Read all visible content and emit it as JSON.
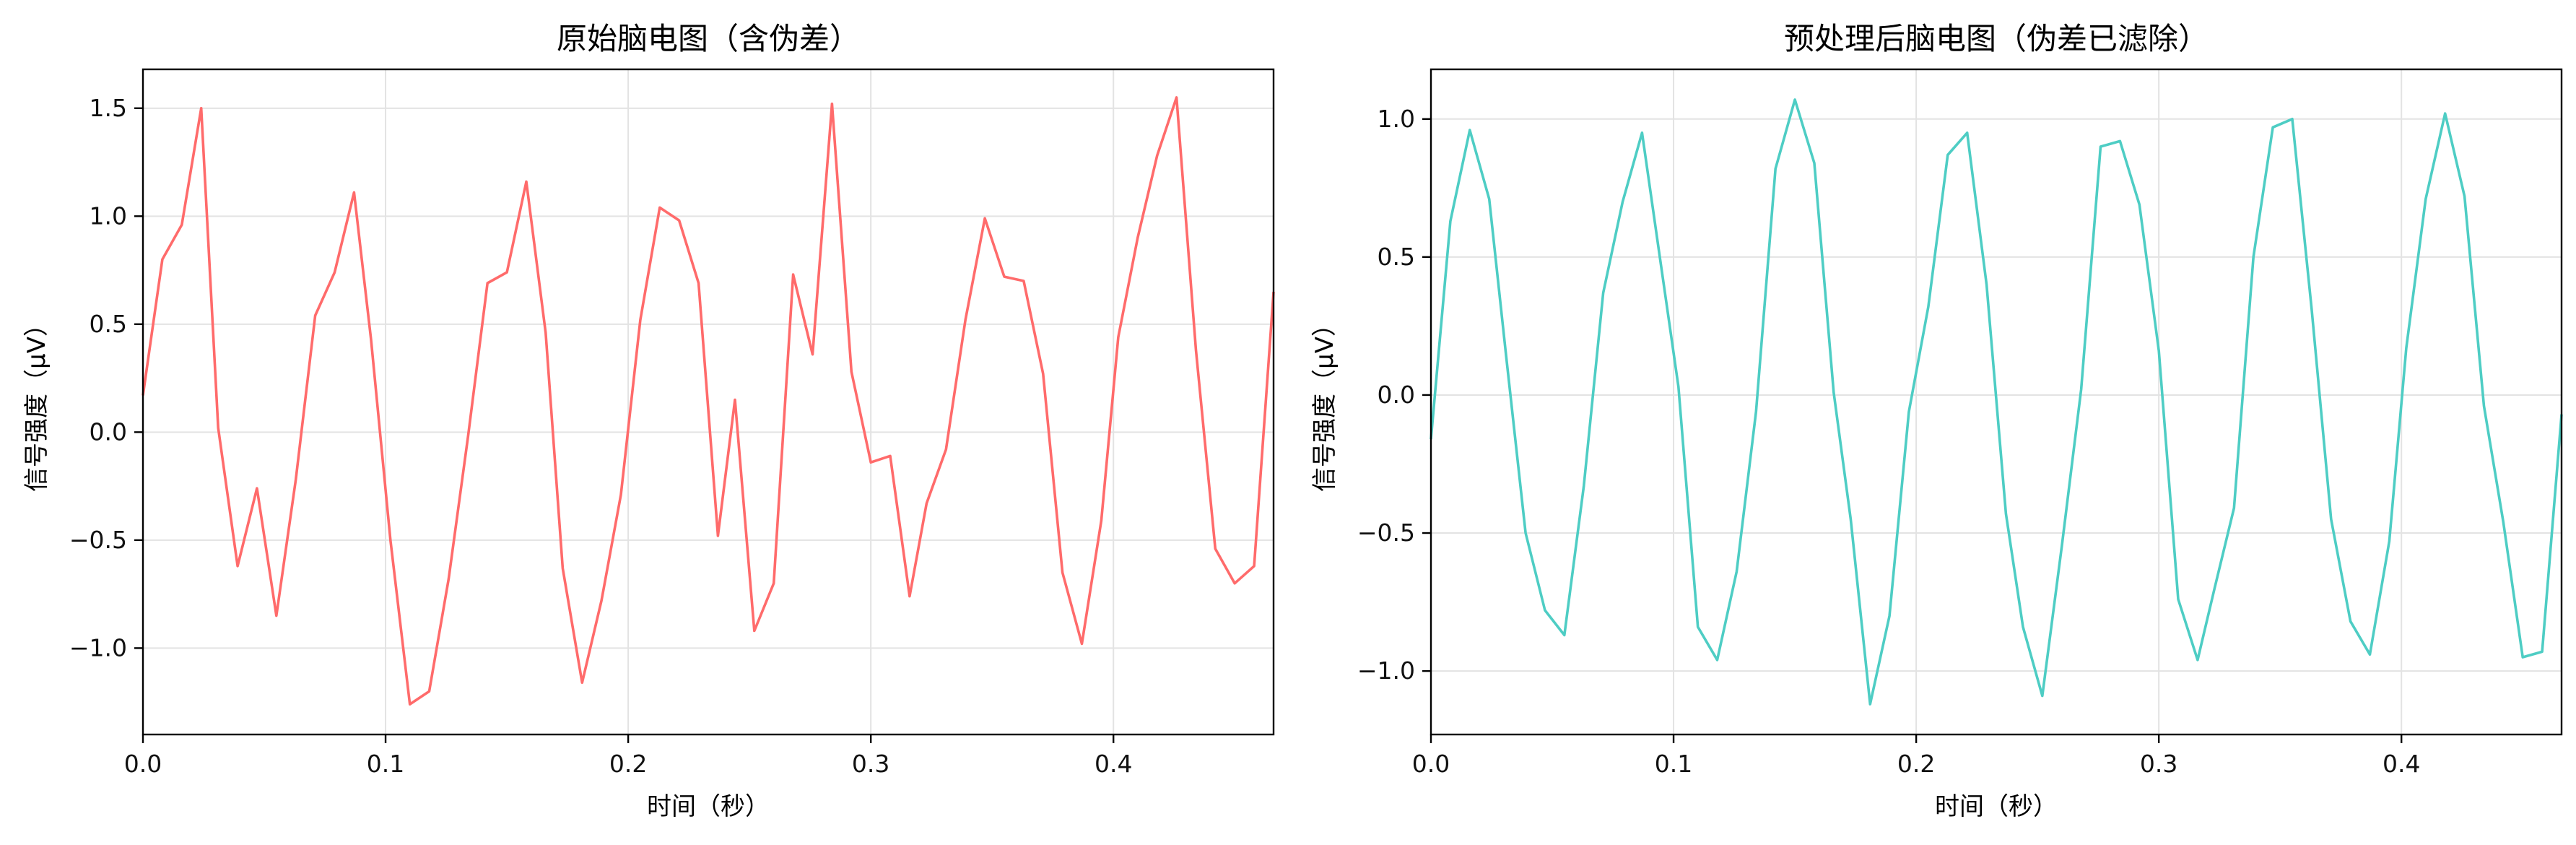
{
  "chart_data": [
    {
      "type": "line",
      "title": "原始脑电图（含伪差）",
      "xlabel": "时间（秒）",
      "ylabel": "信号强度（μV）",
      "xlim": [
        0,
        0.466
      ],
      "ylim": [
        -1.4,
        1.68
      ],
      "xticks": [
        0.0,
        0.1,
        0.2,
        0.3,
        0.4
      ],
      "xtick_labels": [
        "0.0",
        "0.1",
        "0.2",
        "0.3",
        "0.4"
      ],
      "yticks": [
        -1.0,
        -0.5,
        0.0,
        0.5,
        1.0,
        1.5
      ],
      "ytick_labels": [
        "−1.0",
        "−0.5",
        "0.0",
        "0.5",
        "1.0",
        "1.5"
      ],
      "grid": true,
      "color": "#ff6b6b",
      "series": [
        {
          "x": [
            0.0,
            0.008,
            0.016,
            0.024,
            0.031,
            0.039,
            0.047,
            0.055,
            0.063,
            0.071,
            0.079,
            0.087,
            0.094,
            0.102,
            0.11,
            0.118,
            0.126,
            0.134,
            0.142,
            0.15,
            0.158,
            0.166,
            0.173,
            0.181,
            0.189,
            0.197,
            0.205,
            0.213,
            0.221,
            0.229,
            0.237,
            0.244,
            0.252,
            0.26,
            0.268,
            0.276,
            0.284,
            0.292,
            0.3,
            0.308,
            0.316,
            0.323,
            0.331,
            0.339,
            0.347,
            0.355,
            0.363,
            0.371,
            0.379,
            0.387,
            0.395,
            0.402,
            0.41,
            0.418,
            0.426,
            0.434,
            0.442,
            0.45,
            0.458,
            0.466
          ],
          "y": [
            0.17,
            0.8,
            0.96,
            1.5,
            0.02,
            -0.62,
            -0.26,
            -0.85,
            -0.22,
            0.54,
            0.74,
            1.11,
            0.43,
            -0.5,
            -1.26,
            -1.2,
            -0.68,
            -0.02,
            0.69,
            0.74,
            1.16,
            0.46,
            -0.63,
            -1.16,
            -0.78,
            -0.29,
            0.52,
            1.04,
            0.98,
            0.69,
            -0.48,
            0.15,
            -0.92,
            -0.7,
            0.73,
            0.36,
            1.52,
            0.28,
            -0.14,
            -0.11,
            -0.76,
            -0.33,
            -0.08,
            0.52,
            0.99,
            0.72,
            0.7,
            0.27,
            -0.65,
            -0.98,
            -0.41,
            0.44,
            0.9,
            1.28,
            1.55,
            0.38,
            -0.54,
            -0.7,
            -0.62,
            0.65
          ]
        }
      ]
    },
    {
      "type": "line",
      "title": "预处理后脑电图（伪差已滤除）",
      "xlabel": "时间（秒）",
      "ylabel": "信号强度（μV）",
      "xlim": [
        0,
        0.466
      ],
      "ylim": [
        -1.23,
        1.18
      ],
      "xticks": [
        0.0,
        0.1,
        0.2,
        0.3,
        0.4
      ],
      "xtick_labels": [
        "0.0",
        "0.1",
        "0.2",
        "0.3",
        "0.4"
      ],
      "yticks": [
        -1.0,
        -0.5,
        0.0,
        0.5,
        1.0
      ],
      "ytick_labels": [
        "−1.0",
        "−0.5",
        "0.0",
        "0.5",
        "1.0"
      ],
      "grid": true,
      "color": "#4ecdc4",
      "series": [
        {
          "x": [
            0.0,
            0.008,
            0.016,
            0.024,
            0.031,
            0.039,
            0.047,
            0.055,
            0.063,
            0.071,
            0.079,
            0.087,
            0.094,
            0.102,
            0.11,
            0.118,
            0.126,
            0.134,
            0.142,
            0.15,
            0.158,
            0.166,
            0.173,
            0.181,
            0.189,
            0.197,
            0.205,
            0.213,
            0.221,
            0.229,
            0.237,
            0.244,
            0.252,
            0.26,
            0.268,
            0.276,
            0.284,
            0.292,
            0.3,
            0.308,
            0.316,
            0.323,
            0.331,
            0.339,
            0.347,
            0.355,
            0.363,
            0.371,
            0.379,
            0.387,
            0.395,
            0.402,
            0.41,
            0.418,
            0.426,
            0.434,
            0.442,
            0.45,
            0.458,
            0.466
          ],
          "y": [
            -0.16,
            0.63,
            0.96,
            0.71,
            0.14,
            -0.5,
            -0.78,
            -0.87,
            -0.33,
            0.37,
            0.7,
            0.95,
            0.52,
            0.03,
            -0.84,
            -0.96,
            -0.64,
            -0.06,
            0.82,
            1.07,
            0.84,
            0.01,
            -0.45,
            -1.12,
            -0.8,
            -0.06,
            0.32,
            0.87,
            0.95,
            0.4,
            -0.43,
            -0.84,
            -1.09,
            -0.55,
            0.02,
            0.9,
            0.92,
            0.69,
            0.16,
            -0.74,
            -0.96,
            -0.7,
            -0.41,
            0.5,
            0.97,
            1.0,
            0.31,
            -0.45,
            -0.82,
            -0.94,
            -0.53,
            0.17,
            0.71,
            1.02,
            0.72,
            -0.04,
            -0.46,
            -0.95,
            -0.93,
            -0.07
          ]
        }
      ]
    }
  ]
}
